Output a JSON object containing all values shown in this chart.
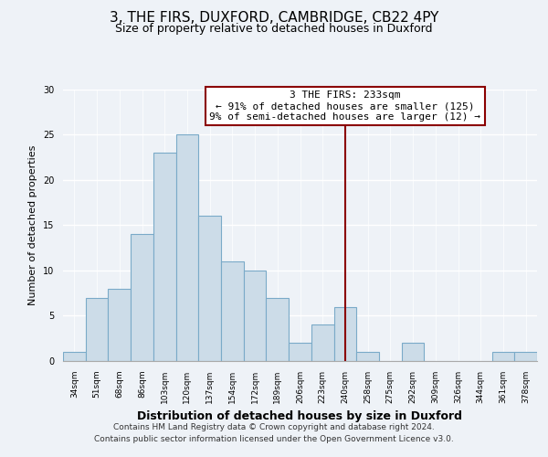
{
  "title": "3, THE FIRS, DUXFORD, CAMBRIDGE, CB22 4PY",
  "subtitle": "Size of property relative to detached houses in Duxford",
  "xlabel": "Distribution of detached houses by size in Duxford",
  "ylabel": "Number of detached properties",
  "bin_labels": [
    "34sqm",
    "51sqm",
    "68sqm",
    "86sqm",
    "103sqm",
    "120sqm",
    "137sqm",
    "154sqm",
    "172sqm",
    "189sqm",
    "206sqm",
    "223sqm",
    "240sqm",
    "258sqm",
    "275sqm",
    "292sqm",
    "309sqm",
    "326sqm",
    "344sqm",
    "361sqm",
    "378sqm"
  ],
  "bar_values": [
    1,
    7,
    8,
    14,
    23,
    25,
    16,
    11,
    10,
    7,
    2,
    4,
    6,
    1,
    0,
    2,
    0,
    0,
    0,
    1,
    1
  ],
  "bar_color": "#ccdce8",
  "bar_edge_color": "#7aaac8",
  "prop_line_index": 12.0,
  "annotation_line1": "3 THE FIRS: 233sqm",
  "annotation_line2": "← 91% of detached houses are smaller (125)",
  "annotation_line3": "9% of semi-detached houses are larger (12) →",
  "footer_line1": "Contains HM Land Registry data © Crown copyright and database right 2024.",
  "footer_line2": "Contains public sector information licensed under the Open Government Licence v3.0.",
  "ylim": [
    0,
    30
  ],
  "background_color": "#eef2f7",
  "grid_color": "#d0d8e4",
  "title_fontsize": 11,
  "subtitle_fontsize": 9,
  "ylabel_fontsize": 8,
  "xlabel_fontsize": 9,
  "tick_fontsize": 6.5,
  "ann_fontsize": 8,
  "footer_fontsize": 6.5
}
